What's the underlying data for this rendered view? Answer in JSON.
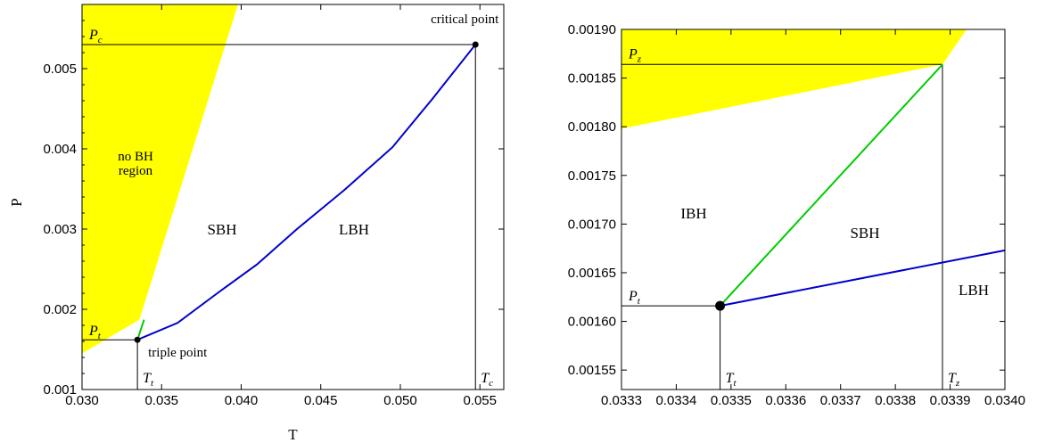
{
  "colors": {
    "shade": "#ffff00",
    "blue": "#0000cc",
    "green": "#00cc00",
    "axis": "#000000"
  },
  "chart_data": [
    {
      "type": "line",
      "xlabel": "T",
      "ylabel": "P",
      "xlim": [
        0.03,
        0.0565
      ],
      "ylim": [
        0.001,
        0.0058
      ],
      "x_ticks": [
        0.03,
        0.035,
        0.04,
        0.045,
        0.05,
        0.055
      ],
      "x_tick_labels": [
        "0.030",
        "0.035",
        "0.040",
        "0.045",
        "0.050",
        "0.055"
      ],
      "y_ticks": [
        0.001,
        0.002,
        0.003,
        0.004,
        0.005
      ],
      "y_tick_labels": [
        "0.001",
        "0.002",
        "0.003",
        "0.004",
        "0.005"
      ],
      "no_bh_region": [
        [
          0.03,
          0.0058
        ],
        [
          0.0398,
          0.0058
        ],
        [
          0.0336,
          0.00187
        ],
        [
          0.03,
          0.00145
        ]
      ],
      "series": [
        {
          "color": "blue",
          "x": [
            0.03348,
            0.036,
            0.0385,
            0.041,
            0.0435,
            0.0465,
            0.0495,
            0.052,
            0.05472
          ],
          "y": [
            0.00162,
            0.00183,
            0.0022,
            0.00256,
            0.003,
            0.00349,
            0.00402,
            0.00462,
            0.0053
          ]
        },
        {
          "color": "green",
          "x": [
            0.03348,
            0.0339
          ],
          "y": [
            0.00162,
            0.00187
          ]
        }
      ],
      "points": [
        {
          "name": "critical point",
          "x": 0.05472,
          "y": 0.0053
        },
        {
          "name": "triple point",
          "x": 0.03348,
          "y": 0.00162
        }
      ],
      "guides": {
        "Pc": 0.0053,
        "Pt": 0.00162,
        "Tt": 0.03348,
        "Tc": 0.05472
      },
      "annotations": {
        "critical_point": "critical point",
        "triple_point": "triple point",
        "no_bh_1": "no BH",
        "no_bh_2": "region",
        "sbh": "SBH",
        "lbh": "LBH",
        "Pc_main": "P",
        "Pc_sub": "c",
        "Pt_main": "P",
        "Pt_sub": "t",
        "Tt_main": "T",
        "Tt_sub": "t",
        "Tc_main": "T",
        "Tc_sub": "c"
      }
    },
    {
      "type": "line",
      "xlim": [
        0.0333,
        0.034
      ],
      "ylim": [
        0.00153,
        0.0019
      ],
      "x_ticks": [
        0.0333,
        0.0334,
        0.0335,
        0.0336,
        0.0337,
        0.0338,
        0.0339,
        0.034
      ],
      "x_tick_labels": [
        "0.0333",
        "0.0334",
        "0.0335",
        "0.0336",
        "0.0337",
        "0.0338",
        "0.0339",
        "0.0340"
      ],
      "y_ticks": [
        0.00155,
        0.0016,
        0.00165,
        0.0017,
        0.00175,
        0.0018,
        0.00185,
        0.0019
      ],
      "y_tick_labels": [
        "0.00155",
        "0.00160",
        "0.00165",
        "0.00170",
        "0.00175",
        "0.00180",
        "0.00185",
        "0.00190"
      ],
      "no_bh_region": [
        [
          0.0333,
          0.0019
        ],
        [
          0.03393,
          0.0019
        ],
        [
          0.033886,
          0.001864
        ],
        [
          0.0333,
          0.001798
        ]
      ],
      "series": [
        {
          "color": "green",
          "x": [
            0.03348,
            0.033886
          ],
          "y": [
            0.001616,
            0.001864
          ]
        },
        {
          "color": "blue",
          "x": [
            0.03348,
            0.034
          ],
          "y": [
            0.001616,
            0.001673
          ]
        }
      ],
      "points": [
        {
          "name": "triple point",
          "x": 0.03348,
          "y": 0.001616
        }
      ],
      "guides": {
        "Pz": 0.001864,
        "Pt": 0.001616,
        "Tt": 0.03348,
        "Tz": 0.033886
      },
      "annotations": {
        "ibh": "IBH",
        "sbh": "SBH",
        "lbh": "LBH",
        "Pz_main": "P",
        "Pz_sub": "z",
        "Pt_main": "P",
        "Pt_sub": "t",
        "Tt_main": "T",
        "Tt_sub": "t",
        "Tz_main": "T",
        "Tz_sub": "z"
      }
    }
  ]
}
